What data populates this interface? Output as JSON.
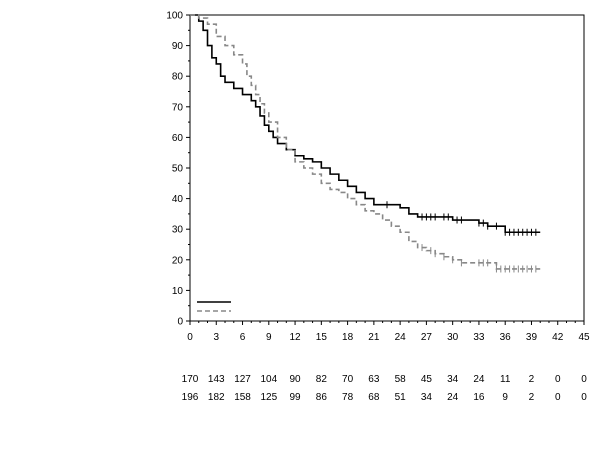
{
  "chart_data": {
    "type": "line",
    "step": true,
    "title": "",
    "xlabel": "",
    "ylabel": "",
    "xlim": [
      0,
      45
    ],
    "ylim": [
      0,
      100
    ],
    "x_ticks": [
      0,
      3,
      6,
      9,
      12,
      15,
      18,
      21,
      24,
      27,
      30,
      33,
      36,
      39,
      42,
      45
    ],
    "y_ticks": [
      0,
      10,
      20,
      30,
      40,
      50,
      60,
      70,
      80,
      90,
      100
    ],
    "grid": false,
    "legend": "bottom-left",
    "series": [
      {
        "style": "solid",
        "color": "#000000",
        "points": [
          [
            0,
            100
          ],
          [
            1,
            98
          ],
          [
            1.5,
            95
          ],
          [
            2,
            90
          ],
          [
            2.5,
            86
          ],
          [
            3,
            84
          ],
          [
            3.5,
            80
          ],
          [
            4,
            78
          ],
          [
            5,
            76
          ],
          [
            6,
            74
          ],
          [
            7,
            72
          ],
          [
            7.5,
            70
          ],
          [
            8,
            67
          ],
          [
            8.5,
            64
          ],
          [
            9,
            62
          ],
          [
            9.5,
            60
          ],
          [
            10,
            58
          ],
          [
            11,
            56
          ],
          [
            12,
            54
          ],
          [
            13,
            53
          ],
          [
            14,
            52
          ],
          [
            15,
            50
          ],
          [
            16,
            48
          ],
          [
            17,
            46
          ],
          [
            18,
            44
          ],
          [
            19,
            42
          ],
          [
            20,
            40
          ],
          [
            21,
            38
          ],
          [
            24,
            37
          ],
          [
            25,
            35
          ],
          [
            26,
            34
          ],
          [
            27,
            34
          ],
          [
            30,
            33
          ],
          [
            33,
            32
          ],
          [
            34,
            31
          ],
          [
            36,
            29
          ],
          [
            40,
            29
          ]
        ],
        "censor_x": [
          22.5,
          26.5,
          27,
          27.5,
          28,
          29,
          29.5,
          30.5,
          31,
          33,
          33.5,
          34,
          35,
          36,
          36.5,
          37,
          37.5,
          38,
          38.5,
          39,
          39.5
        ]
      },
      {
        "style": "dashed",
        "color": "#888888",
        "points": [
          [
            0,
            100
          ],
          [
            1,
            99
          ],
          [
            2,
            97
          ],
          [
            3,
            93
          ],
          [
            4,
            90
          ],
          [
            5,
            87
          ],
          [
            6,
            84
          ],
          [
            6.5,
            80
          ],
          [
            7,
            77
          ],
          [
            7.5,
            74
          ],
          [
            8,
            71
          ],
          [
            8.5,
            68
          ],
          [
            9,
            65
          ],
          [
            10,
            60
          ],
          [
            11,
            56
          ],
          [
            12,
            52
          ],
          [
            13,
            50
          ],
          [
            14,
            48
          ],
          [
            15,
            45
          ],
          [
            16,
            43
          ],
          [
            17,
            42
          ],
          [
            18,
            40
          ],
          [
            19,
            38
          ],
          [
            20,
            36
          ],
          [
            21,
            35
          ],
          [
            22,
            33
          ],
          [
            23,
            31
          ],
          [
            24,
            29
          ],
          [
            25,
            26
          ],
          [
            26,
            24
          ],
          [
            27,
            23
          ],
          [
            28,
            22
          ],
          [
            29,
            21
          ],
          [
            30,
            20
          ],
          [
            31,
            19
          ],
          [
            35,
            17
          ],
          [
            40,
            17
          ]
        ],
        "censor_x": [
          26.5,
          27.5,
          28,
          29,
          30,
          31,
          33,
          33.5,
          34,
          35,
          35.5,
          36,
          36.5,
          37,
          37.5,
          38,
          38.5,
          39,
          39.5
        ]
      }
    ],
    "risk_table": {
      "x": [
        0,
        3,
        6,
        9,
        12,
        15,
        18,
        21,
        24,
        27,
        30,
        33,
        36,
        39,
        42,
        45
      ],
      "rows": [
        [
          170,
          143,
          127,
          104,
          90,
          82,
          70,
          63,
          58,
          45,
          34,
          24,
          11,
          2,
          0,
          0
        ],
        [
          196,
          182,
          158,
          125,
          99,
          86,
          78,
          68,
          51,
          34,
          24,
          16,
          9,
          2,
          0,
          0
        ]
      ]
    }
  }
}
